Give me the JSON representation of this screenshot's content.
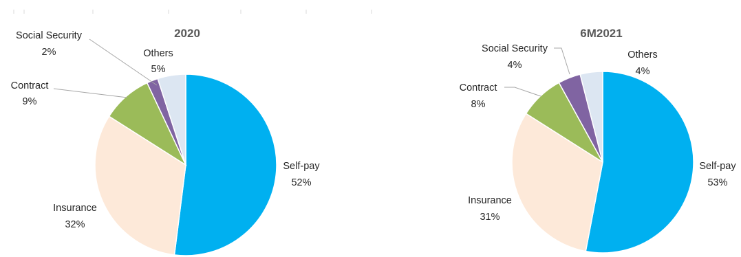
{
  "chart_data": [
    {
      "type": "pie",
      "title": "2020",
      "slices": [
        {
          "label": "Self-pay",
          "value": 52,
          "value_label": "52%",
          "color": "#00b0f0"
        },
        {
          "label": "Insurance",
          "value": 32,
          "value_label": "32%",
          "color": "#fde9d9"
        },
        {
          "label": "Contract",
          "value": 9,
          "value_label": "9%",
          "color": "#9bbb59"
        },
        {
          "label": "Social Security",
          "value": 2,
          "value_label": "2%",
          "color": "#8064a2"
        },
        {
          "label": "Others",
          "value": 5,
          "value_label": "5%",
          "color": "#dce6f2"
        }
      ]
    },
    {
      "type": "pie",
      "title": "6M2021",
      "slices": [
        {
          "label": "Self-pay",
          "value": 53,
          "value_label": "53%",
          "color": "#00b0f0"
        },
        {
          "label": "Insurance",
          "value": 31,
          "value_label": "31%",
          "color": "#fde9d9"
        },
        {
          "label": "Contract",
          "value": 8,
          "value_label": "8%",
          "color": "#9bbb59"
        },
        {
          "label": "Social Security",
          "value": 4,
          "value_label": "4%",
          "color": "#8064a2"
        },
        {
          "label": "Others",
          "value": 4,
          "value_label": "4%",
          "color": "#dce6f2"
        }
      ]
    }
  ]
}
